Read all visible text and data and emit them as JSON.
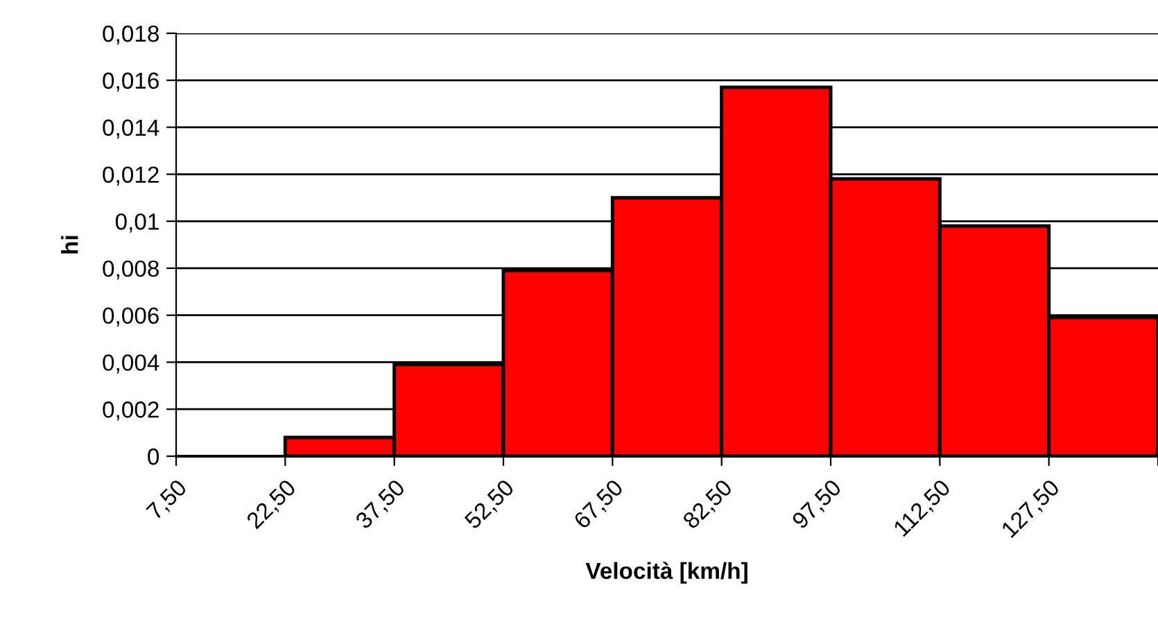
{
  "chart_data": {
    "type": "histogram",
    "xlabel": "Velocità [km/h]",
    "ylabel": "hi",
    "bins": [
      7.5,
      22.5,
      37.5,
      52.5,
      67.5,
      82.5,
      97.5,
      112.5,
      127.5,
      142.5
    ],
    "values": [
      0,
      0.0008,
      0.0039,
      0.0079,
      0.011,
      0.0157,
      0.0118,
      0.0098,
      0.0059
    ],
    "color": "#ff0000",
    "xlim": [
      7.5,
      142.5
    ],
    "xticks": [
      {
        "value": 7.5,
        "label": "7,50"
      },
      {
        "value": 22.5,
        "label": "22,50"
      },
      {
        "value": 37.5,
        "label": "37,50"
      },
      {
        "value": 52.5,
        "label": "52,50"
      },
      {
        "value": 67.5,
        "label": "67,50"
      },
      {
        "value": 82.5,
        "label": "82,50"
      },
      {
        "value": 97.5,
        "label": "97,50"
      },
      {
        "value": 112.5,
        "label": "112,50"
      },
      {
        "value": 127.5,
        "label": "127,50"
      },
      {
        "value": 142.5,
        "label": null
      }
    ],
    "ylim": [
      0,
      0.018
    ],
    "yticks": [
      0,
      {
        "value": 0.002,
        "label": "0,002"
      },
      {
        "value": 0.004,
        "label": "0,004"
      },
      {
        "value": 0.006,
        "label": "0,006"
      },
      {
        "value": 0.008,
        "label": "0,008"
      },
      {
        "value": 0.01,
        "label": "0,01"
      },
      {
        "value": 0.012,
        "label": "0,012"
      },
      {
        "value": 0.014,
        "label": "0,014"
      },
      {
        "value": 0.016,
        "label": "0,016"
      },
      {
        "value": 0.018,
        "label": "0,018"
      }
    ],
    "grid": "y"
  }
}
